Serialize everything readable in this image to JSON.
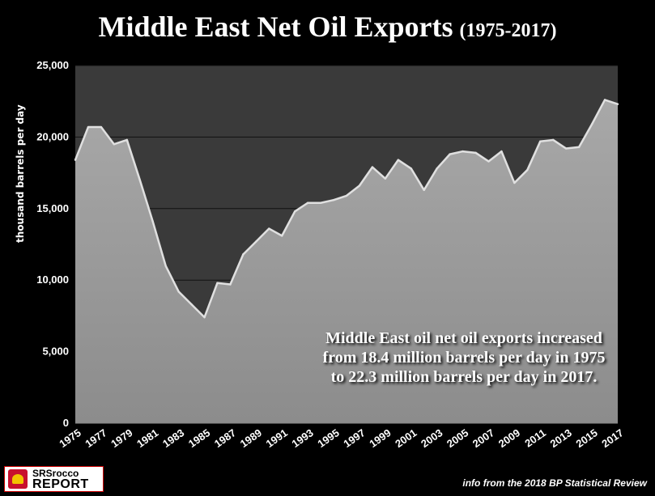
{
  "title": "Middle East Net Oil Exports",
  "subtitle": "(1975-2017)",
  "annotation": "Middle East oil net oil exports increased from 18.4 million barrels per day in 1975 to 22.3 million barrels per day in 2017.",
  "logo": {
    "line1": "SRSrocco",
    "line2": "REPORT"
  },
  "source": "info from the 2018 BP Statistical Review",
  "colors": {
    "plot_background": "#3a3a3a",
    "area_fill": "#9a9a9a",
    "gridline": "#111111"
  },
  "chart_data": {
    "type": "area",
    "title": "Middle East Net Oil Exports",
    "ylabel": "thousand barrels per day",
    "xlabel": "",
    "ylim": [
      0,
      25000
    ],
    "yticks": [
      "0",
      "5,000",
      "10,000",
      "15,000",
      "20,000",
      "25,000"
    ],
    "ytick_values": [
      0,
      5000,
      10000,
      15000,
      20000,
      25000
    ],
    "xtick_labels": [
      "1975",
      "1977",
      "1979",
      "1981",
      "1983",
      "1985",
      "1987",
      "1989",
      "1991",
      "1993",
      "1995",
      "1997",
      "1999",
      "2001",
      "2003",
      "2005",
      "2007",
      "2009",
      "2011",
      "2013",
      "2015",
      "2017"
    ],
    "grid": "horizontal",
    "x": [
      1975,
      1976,
      1977,
      1978,
      1979,
      1980,
      1981,
      1982,
      1983,
      1984,
      1985,
      1986,
      1987,
      1988,
      1989,
      1990,
      1991,
      1992,
      1993,
      1994,
      1995,
      1996,
      1997,
      1998,
      1999,
      2000,
      2001,
      2002,
      2003,
      2004,
      2005,
      2006,
      2007,
      2008,
      2009,
      2010,
      2011,
      2012,
      2013,
      2014,
      2015,
      2016,
      2017
    ],
    "series": [
      {
        "values": [
          18400,
          20700,
          20700,
          19500,
          19800,
          17000,
          14100,
          11000,
          9200,
          8300,
          7400,
          9800,
          9700,
          11800,
          12700,
          13600,
          13100,
          14800,
          15400,
          15400,
          15600,
          15900,
          16600,
          17900,
          17100,
          18400,
          17800,
          16300,
          17800,
          18800,
          19000,
          18900,
          18300,
          19000,
          16800,
          17700,
          19700,
          19800,
          19200,
          19300,
          20900,
          22600,
          22300
        ]
      }
    ]
  }
}
